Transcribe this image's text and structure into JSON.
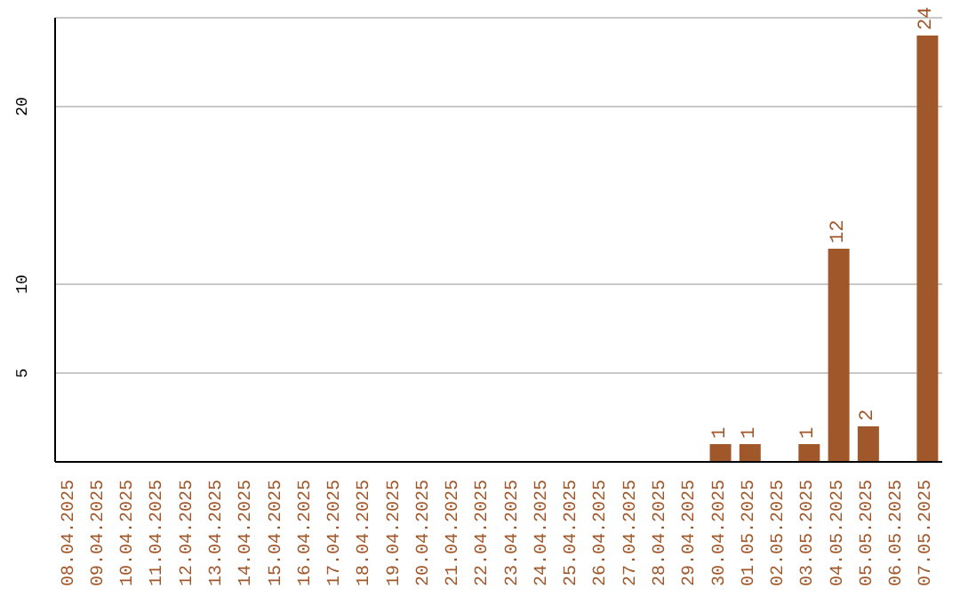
{
  "chart_data": {
    "type": "bar",
    "categories": [
      "08.04.2025",
      "09.04.2025",
      "10.04.2025",
      "11.04.2025",
      "12.04.2025",
      "13.04.2025",
      "14.04.2025",
      "15.04.2025",
      "16.04.2025",
      "17.04.2025",
      "18.04.2025",
      "19.04.2025",
      "20.04.2025",
      "21.04.2025",
      "22.04.2025",
      "23.04.2025",
      "24.04.2025",
      "25.04.2025",
      "26.04.2025",
      "27.04.2025",
      "28.04.2025",
      "29.04.2025",
      "30.04.2025",
      "01.05.2025",
      "02.05.2025",
      "03.05.2025",
      "04.05.2025",
      "05.05.2025",
      "06.05.2025",
      "07.05.2025"
    ],
    "values": [
      0,
      0,
      0,
      0,
      0,
      0,
      0,
      0,
      0,
      0,
      0,
      0,
      0,
      0,
      0,
      0,
      0,
      0,
      0,
      0,
      0,
      0,
      1,
      1,
      0,
      1,
      12,
      2,
      0,
      24
    ],
    "value_labels": [
      null,
      null,
      null,
      null,
      null,
      null,
      null,
      null,
      null,
      null,
      null,
      null,
      null,
      null,
      null,
      null,
      null,
      null,
      null,
      null,
      null,
      null,
      "1",
      "1",
      null,
      "1",
      "12",
      "2",
      null,
      "24"
    ],
    "color": "#a0572a",
    "ylim": [
      0,
      25
    ],
    "yticks": [
      5,
      10,
      20
    ],
    "grid": "y"
  }
}
